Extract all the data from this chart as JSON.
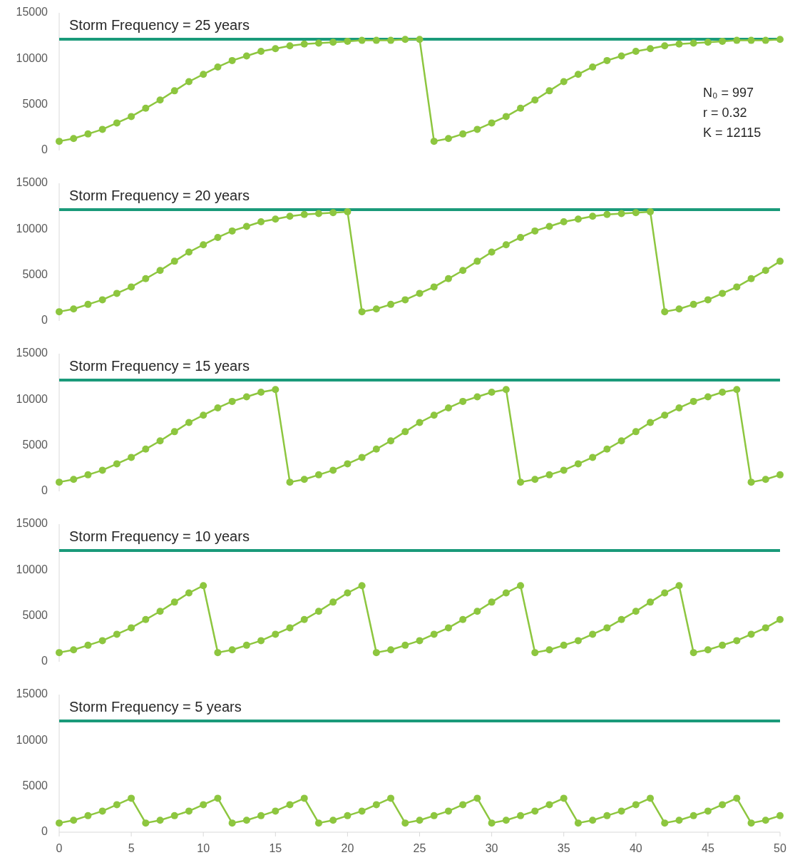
{
  "chart_data": [
    {
      "type": "line",
      "title": "Storm Frequency = 25 years",
      "x": [
        0,
        1,
        2,
        3,
        4,
        5,
        6,
        7,
        8,
        9,
        10,
        11,
        12,
        13,
        14,
        15,
        16,
        17,
        18,
        19,
        20,
        21,
        22,
        23,
        24,
        25,
        26,
        27,
        28,
        29,
        30,
        31,
        32,
        33,
        34,
        35,
        36,
        37,
        38,
        39,
        40,
        41,
        42,
        43,
        44,
        45,
        46,
        47,
        48,
        49,
        50
      ],
      "xlim": [
        0,
        50
      ],
      "ylim": [
        0,
        15000
      ],
      "yticks": [
        0,
        5000,
        10000,
        15000
      ],
      "tick_labels": "y",
      "marker": "circle",
      "series": [
        {
          "color": "#8dc63f",
          "values": [
            1000,
            1300,
            1800,
            2300,
            3000,
            3700,
            4600,
            5500,
            6500,
            7500,
            8300,
            9100,
            9800,
            10300,
            10800,
            11100,
            11400,
            11600,
            11700,
            11800,
            11900,
            12000,
            12000,
            12000,
            12100,
            12100,
            1000,
            1300,
            1800,
            2300,
            3000,
            3700,
            4600,
            5500,
            6500,
            7500,
            8300,
            9100,
            9800,
            10300,
            10800,
            11100,
            11400,
            11600,
            11700,
            11800,
            11900,
            12000,
            12000,
            12000,
            12100
          ]
        }
      ],
      "ref_lines": [
        {
          "axis": "y",
          "value": 12115,
          "color": "#1a9a7a"
        }
      ],
      "annotations": [
        "N₀ = 997",
        "r = 0.32",
        "K = 12115"
      ]
    },
    {
      "type": "line",
      "title": "Storm Frequency = 20 years",
      "x": [
        0,
        1,
        2,
        3,
        4,
        5,
        6,
        7,
        8,
        9,
        10,
        11,
        12,
        13,
        14,
        15,
        16,
        17,
        18,
        19,
        20,
        21,
        22,
        23,
        24,
        25,
        26,
        27,
        28,
        29,
        30,
        31,
        32,
        33,
        34,
        35,
        36,
        37,
        38,
        39,
        40,
        41,
        42,
        43,
        44,
        45,
        46,
        47,
        48,
        49,
        50
      ],
      "xlim": [
        0,
        50
      ],
      "ylim": [
        0,
        15000
      ],
      "yticks": [
        0,
        5000,
        10000,
        15000
      ],
      "tick_labels": "y",
      "marker": "circle",
      "series": [
        {
          "color": "#8dc63f",
          "values": [
            1000,
            1300,
            1800,
            2300,
            3000,
            3700,
            4600,
            5500,
            6500,
            7500,
            8300,
            9100,
            9800,
            10300,
            10800,
            11100,
            11400,
            11600,
            11700,
            11800,
            11900,
            1000,
            1300,
            1800,
            2300,
            3000,
            3700,
            4600,
            5500,
            6500,
            7500,
            8300,
            9100,
            9800,
            10300,
            10800,
            11100,
            11400,
            11600,
            11700,
            11800,
            11900,
            1000,
            1300,
            1800,
            2300,
            3000,
            3700,
            4600,
            5500,
            6500
          ]
        }
      ],
      "ref_lines": [
        {
          "axis": "y",
          "value": 12115,
          "color": "#1a9a7a"
        }
      ]
    },
    {
      "type": "line",
      "title": "Storm Frequency = 15 years",
      "x": [
        0,
        1,
        2,
        3,
        4,
        5,
        6,
        7,
        8,
        9,
        10,
        11,
        12,
        13,
        14,
        15,
        16,
        17,
        18,
        19,
        20,
        21,
        22,
        23,
        24,
        25,
        26,
        27,
        28,
        29,
        30,
        31,
        32,
        33,
        34,
        35,
        36,
        37,
        38,
        39,
        40,
        41,
        42,
        43,
        44,
        45,
        46,
        47,
        48,
        49,
        50
      ],
      "xlim": [
        0,
        50
      ],
      "ylim": [
        0,
        15000
      ],
      "yticks": [
        0,
        5000,
        10000,
        15000
      ],
      "tick_labels": "y",
      "marker": "circle",
      "series": [
        {
          "color": "#8dc63f",
          "values": [
            1000,
            1300,
            1800,
            2300,
            3000,
            3700,
            4600,
            5500,
            6500,
            7500,
            8300,
            9100,
            9800,
            10300,
            10800,
            11100,
            1000,
            1300,
            1800,
            2300,
            3000,
            3700,
            4600,
            5500,
            6500,
            7500,
            8300,
            9100,
            9800,
            10300,
            10800,
            11100,
            1000,
            1300,
            1800,
            2300,
            3000,
            3700,
            4600,
            5500,
            6500,
            7500,
            8300,
            9100,
            9800,
            10300,
            10800,
            11100,
            1000,
            1300,
            1800
          ]
        }
      ],
      "ref_lines": [
        {
          "axis": "y",
          "value": 12115,
          "color": "#1a9a7a"
        }
      ]
    },
    {
      "type": "line",
      "title": "Storm Frequency = 10 years",
      "x": [
        0,
        1,
        2,
        3,
        4,
        5,
        6,
        7,
        8,
        9,
        10,
        11,
        12,
        13,
        14,
        15,
        16,
        17,
        18,
        19,
        20,
        21,
        22,
        23,
        24,
        25,
        26,
        27,
        28,
        29,
        30,
        31,
        32,
        33,
        34,
        35,
        36,
        37,
        38,
        39,
        40,
        41,
        42,
        43,
        44,
        45,
        46,
        47,
        48,
        49,
        50
      ],
      "xlim": [
        0,
        50
      ],
      "ylim": [
        0,
        15000
      ],
      "yticks": [
        0,
        5000,
        10000,
        15000
      ],
      "tick_labels": "y",
      "marker": "circle",
      "series": [
        {
          "color": "#8dc63f",
          "values": [
            1000,
            1300,
            1800,
            2300,
            3000,
            3700,
            4600,
            5500,
            6500,
            7500,
            8300,
            1000,
            1300,
            1800,
            2300,
            3000,
            3700,
            4600,
            5500,
            6500,
            7500,
            8300,
            1000,
            1300,
            1800,
            2300,
            3000,
            3700,
            4600,
            5500,
            6500,
            7500,
            8300,
            1000,
            1300,
            1800,
            2300,
            3000,
            3700,
            4600,
            5500,
            6500,
            7500,
            8300,
            1000,
            1300,
            1800,
            2300,
            3000,
            3700,
            4600
          ]
        }
      ],
      "ref_lines": [
        {
          "axis": "y",
          "value": 12115,
          "color": "#1a9a7a"
        }
      ]
    },
    {
      "type": "line",
      "title": "Storm Frequency = 5 years",
      "x": [
        0,
        1,
        2,
        3,
        4,
        5,
        6,
        7,
        8,
        9,
        10,
        11,
        12,
        13,
        14,
        15,
        16,
        17,
        18,
        19,
        20,
        21,
        22,
        23,
        24,
        25,
        26,
        27,
        28,
        29,
        30,
        31,
        32,
        33,
        34,
        35,
        36,
        37,
        38,
        39,
        40,
        41,
        42,
        43,
        44,
        45,
        46,
        47,
        48,
        49,
        50
      ],
      "xlim": [
        0,
        50
      ],
      "xticks": [
        0,
        5,
        10,
        15,
        20,
        25,
        30,
        35,
        40,
        45,
        50
      ],
      "ylim": [
        0,
        15000
      ],
      "yticks": [
        0,
        5000,
        10000,
        15000
      ],
      "marker": "circle",
      "series": [
        {
          "color": "#8dc63f",
          "values": [
            1000,
            1300,
            1800,
            2300,
            3000,
            3700,
            1000,
            1300,
            1800,
            2300,
            3000,
            3700,
            1000,
            1300,
            1800,
            2300,
            3000,
            3700,
            1000,
            1300,
            1800,
            2300,
            3000,
            3700,
            1000,
            1300,
            1800,
            2300,
            3000,
            3700,
            1000,
            1300,
            1800,
            2300,
            3000,
            3700,
            1000,
            1300,
            1800,
            2300,
            3000,
            3700,
            1000,
            1300,
            1800,
            2300,
            3000,
            3700,
            1000,
            1300,
            1800
          ]
        }
      ],
      "ref_lines": [
        {
          "axis": "y",
          "value": 12115,
          "color": "#1a9a7a"
        }
      ]
    }
  ]
}
